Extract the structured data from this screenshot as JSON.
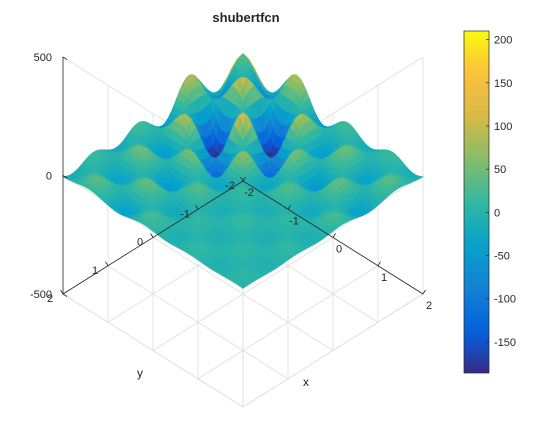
{
  "chart_data": {
    "type": "surface",
    "title": "shubertfcn",
    "xlabel": "x",
    "ylabel": "y",
    "zlabel": "",
    "xlim": [
      -2,
      2
    ],
    "ylim": [
      -2,
      2
    ],
    "zlim": [
      -500,
      500
    ],
    "x_ticks": [
      "-2",
      "-1",
      "0",
      "1",
      "2"
    ],
    "y_ticks": [
      "-2",
      "-1",
      "0",
      "1",
      "2"
    ],
    "z_ticks": [
      "-500",
      "0",
      "500"
    ],
    "colormap": "parula",
    "color_limits": [
      -186,
      210
    ],
    "colorbar_ticks": [
      "200",
      "150",
      "100",
      "50",
      "0",
      "-50",
      "-100",
      "-150"
    ],
    "function": "shubert",
    "grid": true,
    "colorbar_location": "right"
  }
}
